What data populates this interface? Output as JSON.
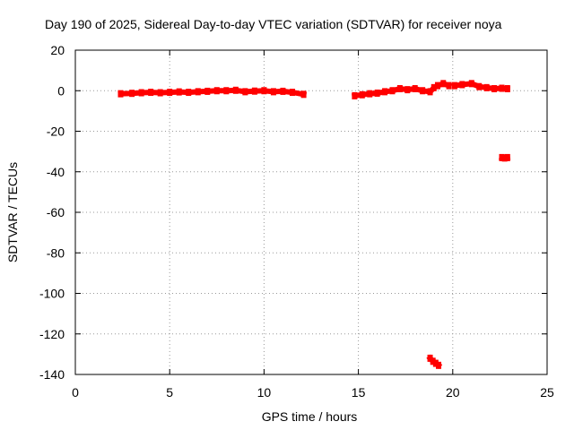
{
  "chart_data": {
    "type": "scatter",
    "title": "Day 190 of 2025, Sidereal Day-to-day VTEC variation (SDTVAR) for receiver noya",
    "xlabel": "GPS time / hours",
    "ylabel": "SDTVAR / TECUs",
    "xlim": [
      0,
      25
    ],
    "ylim": [
      -140,
      20
    ],
    "xticks": [
      0,
      5,
      10,
      15,
      20,
      25
    ],
    "yticks": [
      20,
      0,
      -20,
      -40,
      -60,
      -80,
      -100,
      -120,
      -140
    ],
    "grid": true,
    "series": [
      {
        "name": "SDTVAR",
        "color": "#ff0000",
        "segments": [
          {
            "x": [
              2.4,
              3,
              3.5,
              4,
              4.5,
              5,
              5.5,
              6,
              6.5,
              7,
              7.5,
              8,
              8.5,
              9,
              9.5,
              10,
              10.5,
              11,
              11.5,
              12.1
            ],
            "y": [
              -1.5,
              -1.3,
              -1.0,
              -0.8,
              -1.0,
              -0.8,
              -0.6,
              -0.8,
              -0.5,
              -0.3,
              0.0,
              0.0,
              0.2,
              -0.5,
              -0.2,
              0.0,
              -0.5,
              -0.3,
              -0.8,
              -1.8
            ]
          },
          {
            "x": [
              14.8,
              15.2,
              15.6,
              16,
              16.4,
              16.8,
              17.2,
              17.6,
              18,
              18.4,
              18.8,
              19,
              19.2,
              19.5,
              19.8
            ],
            "y": [
              -2.5,
              -2.0,
              -1.5,
              -1.2,
              -0.5,
              0.0,
              1.0,
              0.5,
              1.0,
              0.0,
              -0.5,
              1.5,
              2.5,
              3.5,
              2.5
            ]
          },
          {
            "x": [
              20.1,
              20.5,
              21,
              21.4,
              21.8,
              22.2,
              22.6,
              22.9
            ],
            "y": [
              2.5,
              3.0,
              3.5,
              2.0,
              1.5,
              1.0,
              1.2,
              1.0
            ]
          },
          {
            "x": [
              22.6,
              22.75,
              22.9
            ],
            "y": [
              -33.0,
              -33.2,
              -33.0
            ]
          },
          {
            "x": [
              18.8,
              18.95,
              19.1,
              19.25
            ],
            "y": [
              -132.0,
              -133.5,
              -134.5,
              -135.5
            ]
          }
        ]
      }
    ]
  }
}
